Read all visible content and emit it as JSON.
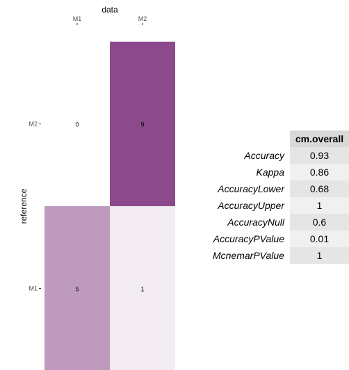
{
  "chart_data": {
    "type": "heatmap",
    "title": "",
    "xlabel": "data",
    "ylabel": "reference",
    "x_categories": [
      "M1",
      "M2"
    ],
    "y_categories": [
      "M1",
      "M2"
    ],
    "cells": [
      {
        "x": "M1",
        "y": "M2",
        "value": 0
      },
      {
        "x": "M2",
        "y": "M2",
        "value": 9
      },
      {
        "x": "M1",
        "y": "M1",
        "value": 5
      },
      {
        "x": "M2",
        "y": "M1",
        "value": 1
      }
    ],
    "value_range": [
      0,
      9
    ],
    "color_low": "#ffffff",
    "color_high": "#8c4a8c",
    "x_axis_position": "top",
    "grid": false
  },
  "stats_table": {
    "header": "cm.overall",
    "rows": [
      {
        "label": "Accuracy",
        "value": "0.93"
      },
      {
        "label": "Kappa",
        "value": "0.86"
      },
      {
        "label": "AccuracyLower",
        "value": "0.68"
      },
      {
        "label": "AccuracyUpper",
        "value": "1"
      },
      {
        "label": "AccuracyNull",
        "value": "0.6"
      },
      {
        "label": "AccuracyPValue",
        "value": "0.01"
      },
      {
        "label": "McnemarPValue",
        "value": "1"
      }
    ],
    "header_bg": "#d9d9d9",
    "row_bg_even": "#e5e5e5",
    "row_bg_odd": "#f0f0f0"
  }
}
